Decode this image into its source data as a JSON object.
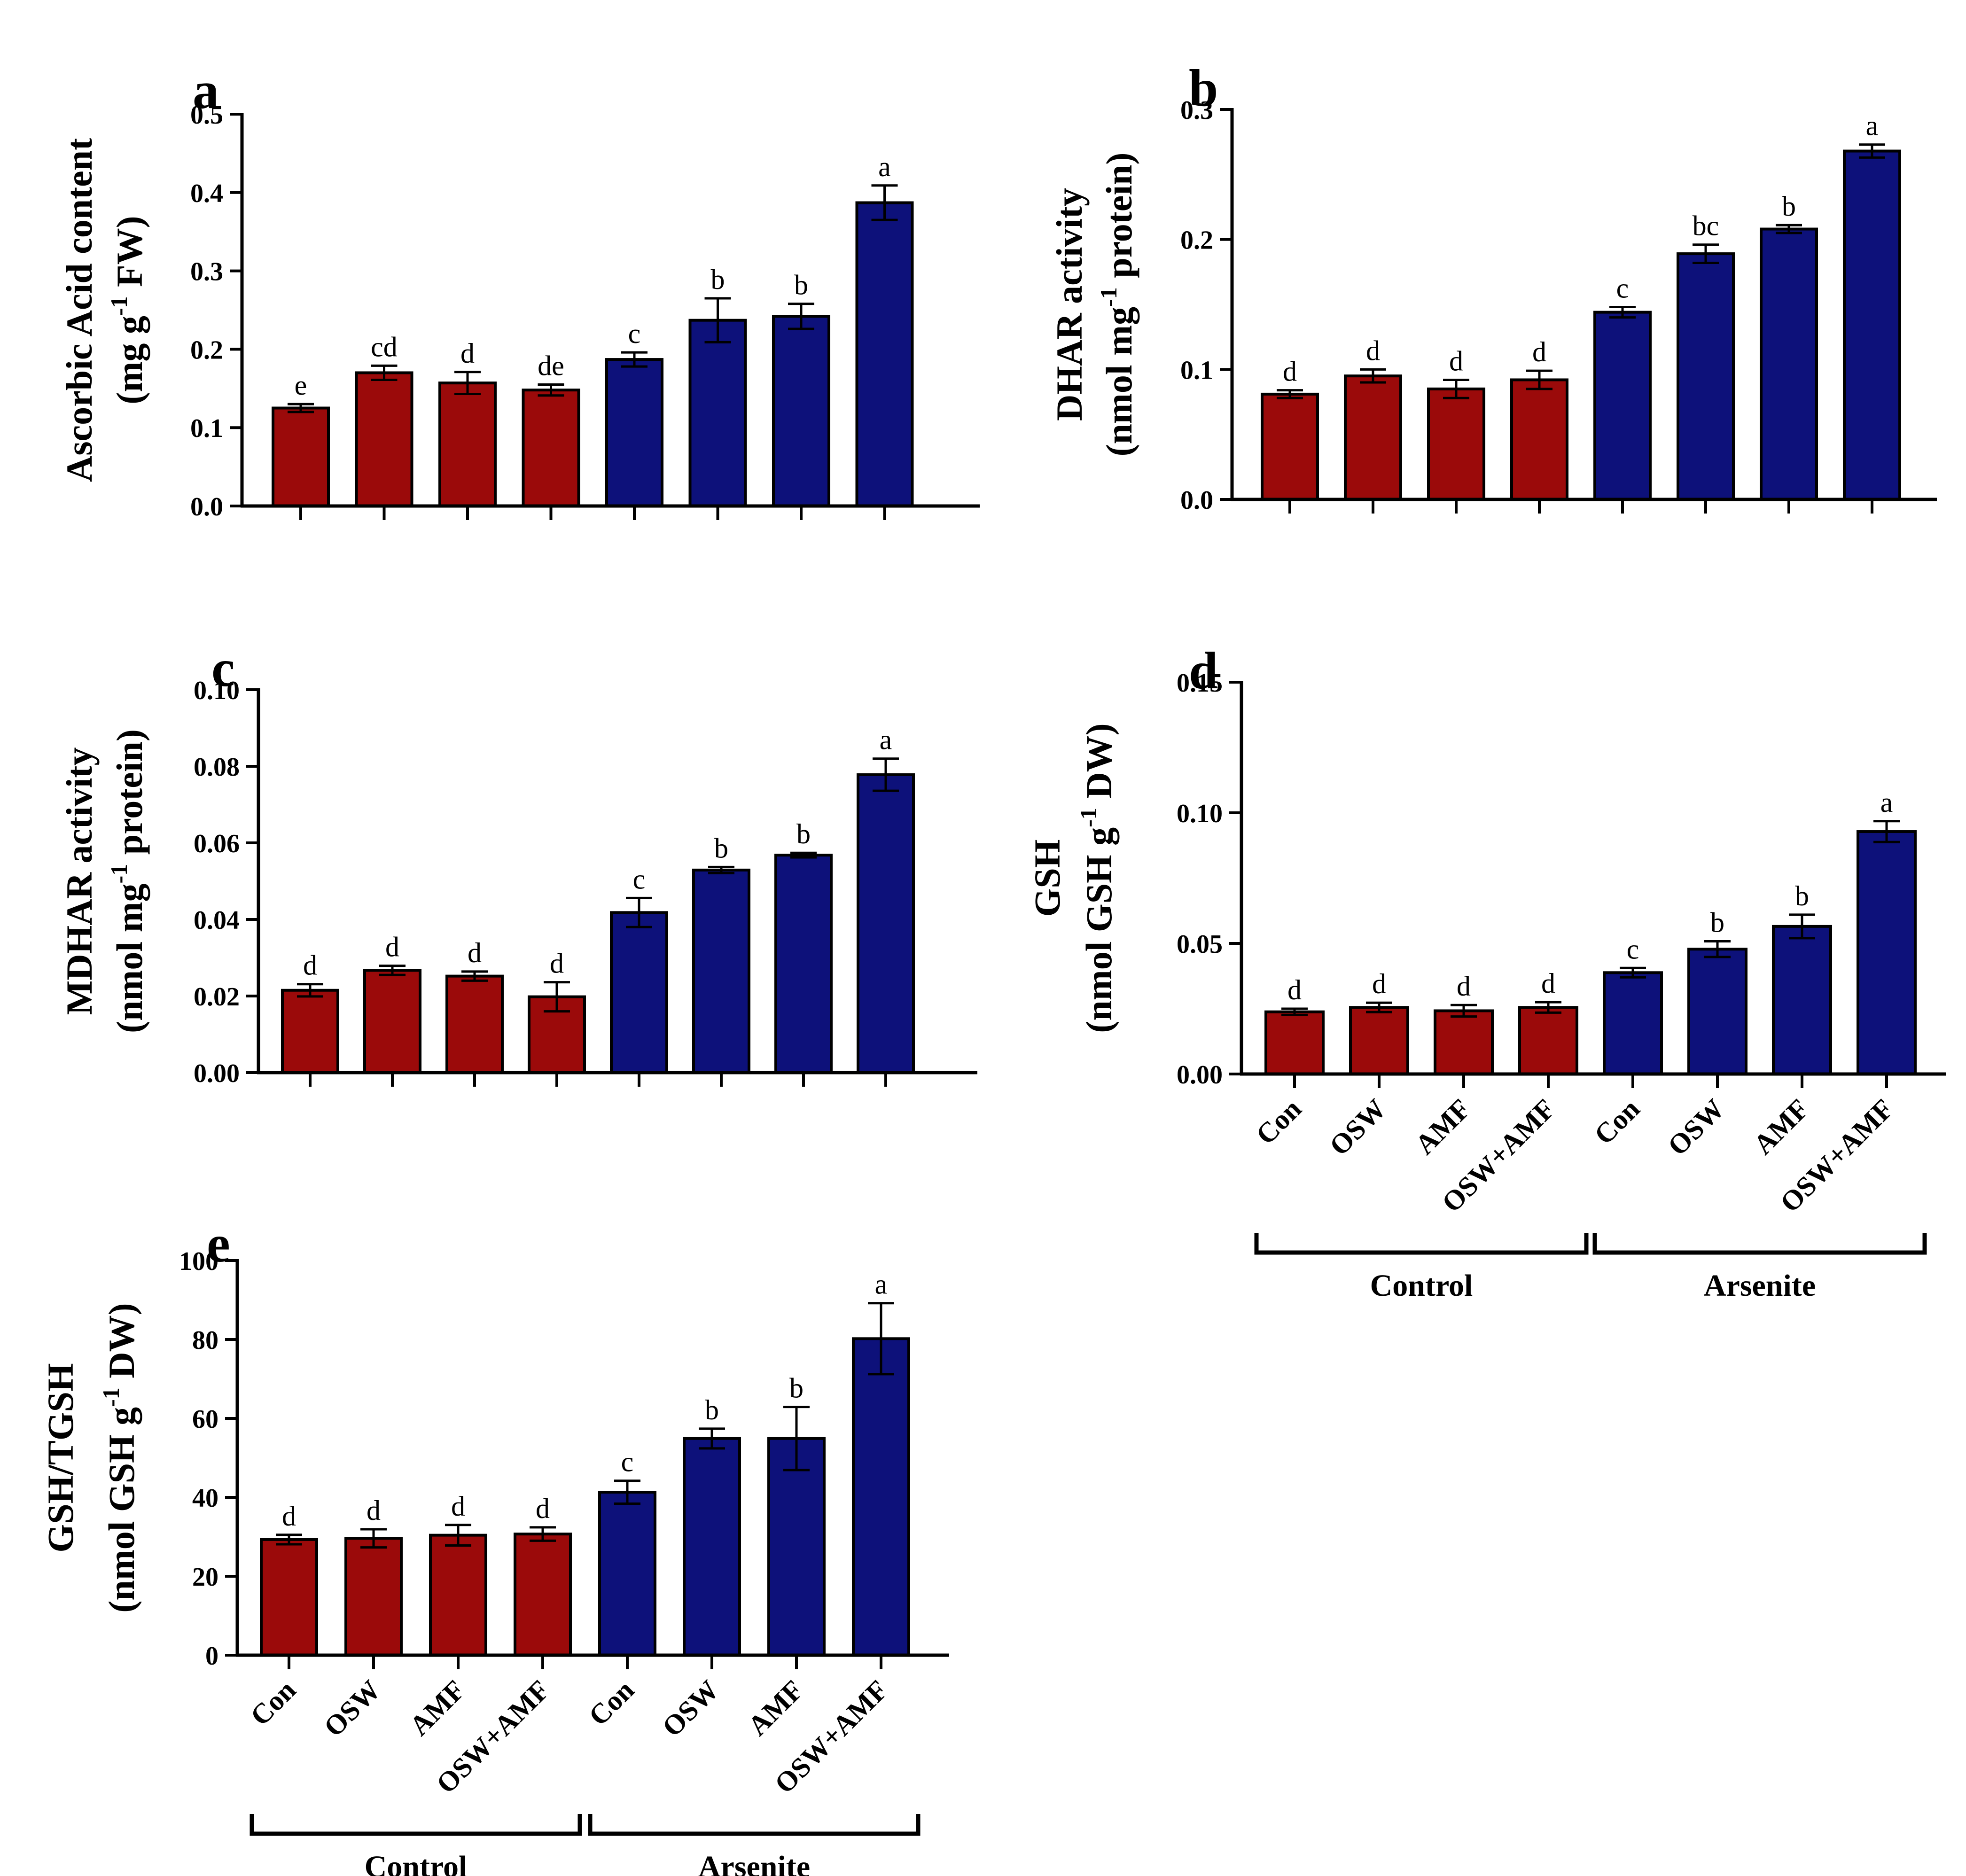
{
  "figure": {
    "categories": [
      "Con",
      "OSW",
      "AMF",
      "OSW+AMF",
      "Con",
      "OSW",
      "AMF",
      "OSW+AMF"
    ],
    "groups": [
      "Control",
      "Arsenite"
    ],
    "colors": {
      "control": "#9b0a0a",
      "arsenite": "#0d117a",
      "axis": "#000000"
    }
  },
  "chart_data": [
    {
      "panel": "a",
      "type": "bar",
      "title": "",
      "ylabel_line1": "Ascorbic Acid  content",
      "ylabel_line2_pre": "(mg g",
      "ylabel_line2_sup": "-1",
      "ylabel_line2_post": " FW)",
      "ylim": [
        0,
        0.5
      ],
      "yticks": [
        "0.0",
        "0.1",
        "0.2",
        "0.3",
        "0.4",
        "0.5"
      ],
      "show_xlabels": false,
      "values": [
        0.125,
        0.17,
        0.157,
        0.148,
        0.187,
        0.237,
        0.242,
        0.387
      ],
      "errors": [
        0.005,
        0.009,
        0.014,
        0.007,
        0.009,
        0.028,
        0.016,
        0.022
      ],
      "letters": [
        "e",
        "cd",
        "d",
        "de",
        "c",
        "b",
        "b",
        "a"
      ]
    },
    {
      "panel": "b",
      "type": "bar",
      "title": "",
      "ylabel_line1": "DHAR activity",
      "ylabel_line2_pre": "(nmol mg",
      "ylabel_line2_sup": "-1",
      "ylabel_line2_post": " protein)",
      "ylim": [
        0,
        0.3
      ],
      "yticks": [
        "0.0",
        "0.1",
        "0.2",
        "0.3"
      ],
      "show_xlabels": false,
      "values": [
        0.081,
        0.095,
        0.085,
        0.092,
        0.144,
        0.189,
        0.208,
        0.268
      ],
      "errors": [
        0.003,
        0.005,
        0.007,
        0.007,
        0.004,
        0.007,
        0.003,
        0.005
      ],
      "letters": [
        "d",
        "d",
        "d",
        "d",
        "c",
        "bc",
        "b",
        "a"
      ]
    },
    {
      "panel": "c",
      "type": "bar",
      "title": "",
      "ylabel_line1": "MDHAR activity",
      "ylabel_line2_pre": "(nmol mg",
      "ylabel_line2_sup": "-1",
      "ylabel_line2_post": " protein)",
      "ylim": [
        0,
        0.1
      ],
      "yticks": [
        "0.00",
        "0.02",
        "0.04",
        "0.06",
        "0.08",
        "0.10"
      ],
      "show_xlabels": false,
      "values": [
        0.0215,
        0.0267,
        0.0252,
        0.0198,
        0.0418,
        0.0529,
        0.0568,
        0.0778
      ],
      "errors": [
        0.0016,
        0.0012,
        0.0012,
        0.0038,
        0.0038,
        0.0008,
        0.0006,
        0.0042
      ],
      "letters": [
        "d",
        "d",
        "d",
        "d",
        "c",
        "b",
        "b",
        "a"
      ]
    },
    {
      "panel": "d",
      "type": "bar",
      "title": "",
      "ylabel_line1": "GSH",
      "ylabel_line2_pre": "(nmol GSH g",
      "ylabel_line2_sup": "-1",
      "ylabel_line2_post": " DW)",
      "ylim": [
        0,
        0.15
      ],
      "yticks": [
        "0.00",
        "0.05",
        "0.10",
        "0.15"
      ],
      "show_xlabels": true,
      "values": [
        0.0238,
        0.0255,
        0.0242,
        0.0255,
        0.0388,
        0.0478,
        0.0565,
        0.0928
      ],
      "errors": [
        0.0012,
        0.0018,
        0.0022,
        0.002,
        0.0018,
        0.003,
        0.0045,
        0.004
      ],
      "letters": [
        "d",
        "d",
        "d",
        "d",
        "c",
        "b",
        "b",
        "a"
      ]
    },
    {
      "panel": "e",
      "type": "bar",
      "title": "",
      "ylabel_line1": "GSH/TGSH",
      "ylabel_line2_pre": "(nmol GSH g",
      "ylabel_line2_sup": "-1",
      "ylabel_line2_post": " DW)",
      "ylim": [
        0,
        100
      ],
      "yticks": [
        "0",
        "20",
        "40",
        "60",
        "80",
        "100"
      ],
      "show_xlabels": true,
      "values": [
        29.3,
        29.6,
        30.4,
        30.7,
        41.3,
        54.9,
        54.9,
        80.2
      ],
      "errors": [
        1.2,
        2.3,
        2.6,
        1.7,
        2.9,
        2.5,
        8.0,
        9.0
      ],
      "letters": [
        "d",
        "d",
        "d",
        "d",
        "c",
        "b",
        "b",
        "a"
      ]
    }
  ]
}
